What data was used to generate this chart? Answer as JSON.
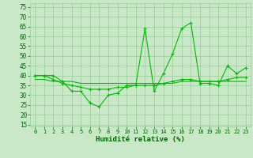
{
  "x": [
    0,
    1,
    2,
    3,
    4,
    5,
    6,
    7,
    8,
    9,
    10,
    11,
    12,
    13,
    14,
    15,
    16,
    17,
    18,
    19,
    20,
    21,
    22,
    23
  ],
  "y_main": [
    40,
    40,
    40,
    37,
    32,
    32,
    26,
    24,
    30,
    31,
    35,
    35,
    64,
    32,
    41,
    51,
    64,
    67,
    36,
    36,
    35,
    45,
    41,
    44
  ],
  "y_smooth": [
    40,
    40,
    38,
    36,
    35,
    34,
    33,
    33,
    33,
    34,
    34,
    35,
    35,
    35,
    36,
    37,
    38,
    38,
    37,
    37,
    37,
    38,
    39,
    39
  ],
  "y_linear": [
    38,
    38,
    37,
    37,
    37,
    36,
    36,
    36,
    36,
    36,
    36,
    36,
    36,
    36,
    36,
    36,
    37,
    37,
    37,
    37,
    37,
    37,
    37,
    37
  ],
  "line_color": "#00BB00",
  "bg_color": "#C8E8C8",
  "grid_color": "#99CC99",
  "xlabel": "Humidité relative (%)",
  "ylim": [
    14,
    77
  ],
  "xlim": [
    -0.5,
    23.5
  ],
  "yticks": [
    15,
    20,
    25,
    30,
    35,
    40,
    45,
    50,
    55,
    60,
    65,
    70,
    75
  ],
  "xticks": [
    0,
    1,
    2,
    3,
    4,
    5,
    6,
    7,
    8,
    9,
    10,
    11,
    12,
    13,
    14,
    15,
    16,
    17,
    18,
    19,
    20,
    21,
    22,
    23
  ]
}
